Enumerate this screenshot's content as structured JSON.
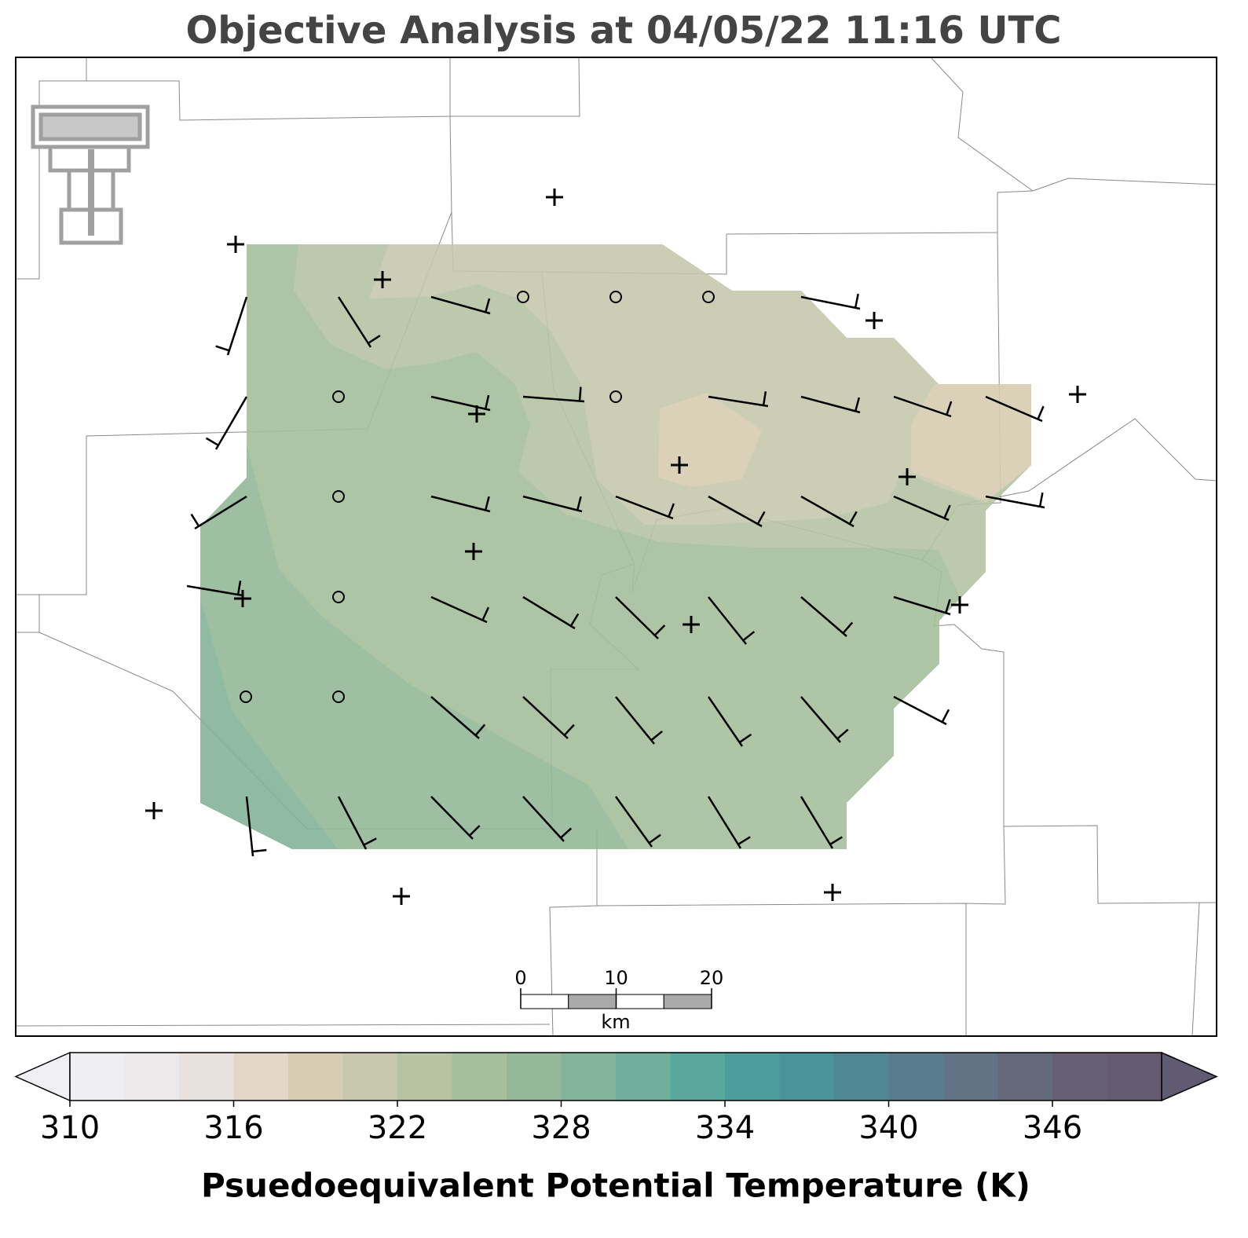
{
  "title": "Objective Analysis at 04/05/22 11:16 UTC",
  "colorbar": {
    "label": "Psuedoequivalent Potential Temperature (K)",
    "xlim": [
      310,
      350
    ],
    "ticks": [
      310,
      316,
      322,
      328,
      334,
      340,
      346
    ],
    "levels": [
      310,
      312,
      314,
      316,
      318,
      320,
      322,
      324,
      326,
      328,
      330,
      332,
      334,
      336,
      338,
      340,
      342,
      344,
      346,
      348,
      350
    ],
    "colors": [
      "#efeef2",
      "#ece9ea",
      "#e8e1dd",
      "#e3d6c8",
      "#d8cdb2",
      "#c7c8ad",
      "#b6c4a4",
      "#a5bf9c",
      "#94b998",
      "#83b49a",
      "#6faf9b",
      "#5aa89d",
      "#4c9e9c",
      "#4a939a",
      "#4f8894",
      "#587d8d",
      "#617385",
      "#64697c",
      "#665f74",
      "#665a71"
    ],
    "under_color": "#f0eff4",
    "over_color": "#615a73"
  },
  "scale_bar": {
    "ticks": [
      0,
      10,
      20
    ],
    "xlim": [
      0,
      20
    ],
    "unit": "km"
  }
}
